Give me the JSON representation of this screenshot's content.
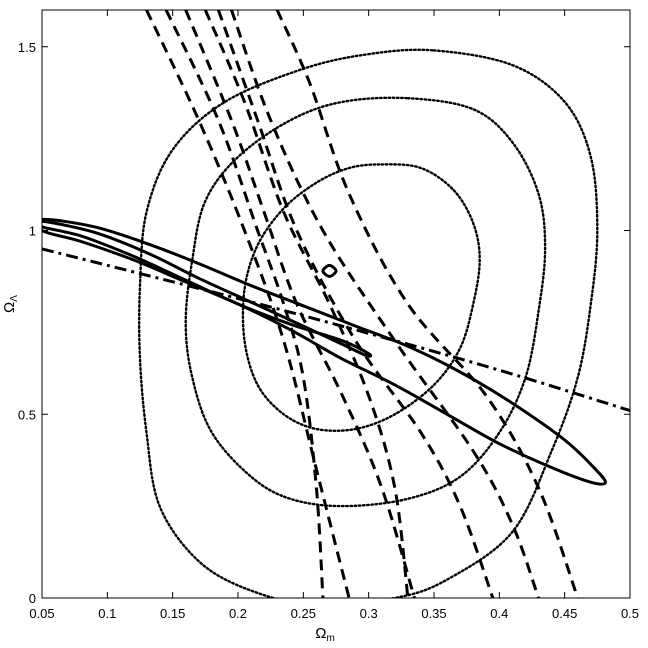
{
  "chart_data": {
    "type": "line",
    "xlabel": "Ω_m",
    "xlabel_main": "Ω",
    "xlabel_sub": "m",
    "ylabel": "Ω_Λ",
    "ylabel_main": "Ω",
    "ylabel_sub": "Λ",
    "xlim": [
      0.05,
      0.5
    ],
    "ylim": [
      0,
      1.6
    ],
    "xticks": [
      0.05,
      0.1,
      0.15,
      0.2,
      0.25,
      0.3,
      0.35,
      0.4,
      0.45,
      0.5
    ],
    "xtick_labels": [
      "0.05",
      "0.1",
      "0.15",
      "0.2",
      "0.25",
      "0.3",
      "0.35",
      "0.4",
      "0.45",
      "0.5"
    ],
    "yticks": [
      0,
      0.5,
      1,
      1.5
    ],
    "ytick_labels": [
      "0",
      "0.5",
      "1",
      "1.5"
    ],
    "grid": false,
    "series": [
      {
        "style": "dotted-contour",
        "closed": true,
        "points": [
          [
            0.35,
            1.49
          ],
          [
            0.41,
            1.45
          ],
          [
            0.45,
            1.35
          ],
          [
            0.47,
            1.2
          ],
          [
            0.475,
            1.0
          ],
          [
            0.47,
            0.8
          ],
          [
            0.46,
            0.6
          ],
          [
            0.44,
            0.4
          ],
          [
            0.41,
            0.18
          ],
          [
            0.36,
            0.05
          ],
          [
            0.32,
            0.0
          ],
          [
            0.26,
            -0.02
          ],
          [
            0.21,
            0.02
          ],
          [
            0.17,
            0.1
          ],
          [
            0.14,
            0.25
          ],
          [
            0.13,
            0.45
          ],
          [
            0.125,
            0.65
          ],
          [
            0.125,
            0.85
          ],
          [
            0.13,
            1.05
          ],
          [
            0.15,
            1.22
          ],
          [
            0.19,
            1.35
          ],
          [
            0.25,
            1.44
          ],
          [
            0.3,
            1.48
          ]
        ]
      },
      {
        "style": "dotted-contour",
        "closed": true,
        "points": [
          [
            0.33,
            1.36
          ],
          [
            0.38,
            1.33
          ],
          [
            0.41,
            1.24
          ],
          [
            0.43,
            1.1
          ],
          [
            0.435,
            0.95
          ],
          [
            0.43,
            0.78
          ],
          [
            0.42,
            0.6
          ],
          [
            0.4,
            0.45
          ],
          [
            0.37,
            0.33
          ],
          [
            0.33,
            0.27
          ],
          [
            0.28,
            0.25
          ],
          [
            0.24,
            0.27
          ],
          [
            0.21,
            0.33
          ],
          [
            0.18,
            0.45
          ],
          [
            0.165,
            0.6
          ],
          [
            0.16,
            0.75
          ],
          [
            0.165,
            0.92
          ],
          [
            0.175,
            1.08
          ],
          [
            0.2,
            1.2
          ],
          [
            0.24,
            1.3
          ],
          [
            0.28,
            1.35
          ]
        ]
      },
      {
        "style": "dotted-contour",
        "closed": true,
        "points": [
          [
            0.31,
            1.18
          ],
          [
            0.34,
            1.17
          ],
          [
            0.365,
            1.11
          ],
          [
            0.38,
            1.02
          ],
          [
            0.385,
            0.92
          ],
          [
            0.38,
            0.8
          ],
          [
            0.37,
            0.68
          ],
          [
            0.35,
            0.58
          ],
          [
            0.32,
            0.5
          ],
          [
            0.29,
            0.46
          ],
          [
            0.26,
            0.46
          ],
          [
            0.235,
            0.5
          ],
          [
            0.215,
            0.58
          ],
          [
            0.205,
            0.7
          ],
          [
            0.205,
            0.84
          ],
          [
            0.215,
            0.96
          ],
          [
            0.235,
            1.06
          ],
          [
            0.26,
            1.13
          ],
          [
            0.285,
            1.17
          ]
        ]
      },
      {
        "style": "solid-contour",
        "closed": true,
        "points": [
          [
            0.05,
            1.03
          ],
          [
            0.09,
            1.01
          ],
          [
            0.13,
            0.965
          ],
          [
            0.17,
            0.91
          ],
          [
            0.21,
            0.85
          ],
          [
            0.25,
            0.795
          ],
          [
            0.29,
            0.74
          ],
          [
            0.33,
            0.685
          ],
          [
            0.37,
            0.615
          ],
          [
            0.41,
            0.53
          ],
          [
            0.45,
            0.43
          ],
          [
            0.475,
            0.345
          ],
          [
            0.481,
            0.313
          ],
          [
            0.47,
            0.315
          ],
          [
            0.44,
            0.355
          ],
          [
            0.4,
            0.42
          ],
          [
            0.36,
            0.5
          ],
          [
            0.32,
            0.58
          ],
          [
            0.28,
            0.65
          ],
          [
            0.24,
            0.73
          ],
          [
            0.2,
            0.8
          ],
          [
            0.16,
            0.86
          ],
          [
            0.12,
            0.92
          ],
          [
            0.08,
            0.97
          ],
          [
            0.05,
            1.0
          ]
        ]
      },
      {
        "style": "solid-contour",
        "closed": true,
        "points": [
          [
            0.05,
            1.025
          ],
          [
            0.09,
            0.995
          ],
          [
            0.13,
            0.94
          ],
          [
            0.17,
            0.87
          ],
          [
            0.21,
            0.805
          ],
          [
            0.25,
            0.74
          ],
          [
            0.28,
            0.69
          ],
          [
            0.298,
            0.66
          ],
          [
            0.3,
            0.665
          ],
          [
            0.28,
            0.7
          ],
          [
            0.24,
            0.745
          ],
          [
            0.2,
            0.8
          ],
          [
            0.16,
            0.865
          ],
          [
            0.12,
            0.93
          ],
          [
            0.08,
            0.985
          ],
          [
            0.05,
            1.01
          ]
        ]
      },
      {
        "style": "solid-contour",
        "closed": true,
        "points": [
          [
            0.27,
            0.905
          ],
          [
            0.275,
            0.89
          ],
          [
            0.27,
            0.875
          ],
          [
            0.265,
            0.89
          ]
        ]
      },
      {
        "style": "dashdot-line",
        "closed": false,
        "points": [
          [
            0.05,
            0.95
          ],
          [
            0.2,
            0.815
          ],
          [
            0.3,
            0.72
          ],
          [
            0.4,
            0.62
          ],
          [
            0.5,
            0.51
          ]
        ]
      },
      {
        "style": "dashed-line",
        "closed": false,
        "points": [
          [
            0.13,
            1.6
          ],
          [
            0.17,
            1.3
          ],
          [
            0.205,
            1.0
          ],
          [
            0.235,
            0.7
          ],
          [
            0.26,
            0.35
          ],
          [
            0.285,
            0.0
          ]
        ]
      },
      {
        "style": "dashed-line",
        "closed": false,
        "points": [
          [
            0.145,
            1.6
          ],
          [
            0.185,
            1.3
          ],
          [
            0.215,
            1.0
          ],
          [
            0.235,
            0.8
          ],
          [
            0.25,
            0.6
          ],
          [
            0.26,
            0.3
          ],
          [
            0.265,
            0.0
          ]
        ]
      },
      {
        "style": "dashed-line",
        "closed": false,
        "points": [
          [
            0.16,
            1.6
          ],
          [
            0.195,
            1.3
          ],
          [
            0.22,
            1.05
          ],
          [
            0.245,
            0.8
          ],
          [
            0.28,
            0.55
          ],
          [
            0.31,
            0.3
          ],
          [
            0.335,
            0.0
          ]
        ]
      },
      {
        "style": "dashed-line",
        "closed": false,
        "points": [
          [
            0.175,
            1.6
          ],
          [
            0.205,
            1.35
          ],
          [
            0.235,
            1.05
          ],
          [
            0.27,
            0.8
          ],
          [
            0.3,
            0.55
          ],
          [
            0.32,
            0.3
          ],
          [
            0.33,
            0.0
          ]
        ]
      },
      {
        "style": "dashed-line",
        "closed": false,
        "points": [
          [
            0.185,
            1.6
          ],
          [
            0.215,
            1.3
          ],
          [
            0.245,
            1.0
          ],
          [
            0.29,
            0.7
          ],
          [
            0.34,
            0.45
          ],
          [
            0.37,
            0.25
          ],
          [
            0.395,
            0.0
          ]
        ]
      },
      {
        "style": "dashed-line",
        "closed": false,
        "points": [
          [
            0.195,
            1.6
          ],
          [
            0.225,
            1.3
          ],
          [
            0.265,
            1.0
          ],
          [
            0.32,
            0.7
          ],
          [
            0.38,
            0.4
          ],
          [
            0.41,
            0.2
          ],
          [
            0.43,
            0.0
          ]
        ]
      },
      {
        "style": "dashed-line",
        "closed": false,
        "points": [
          [
            0.23,
            1.6
          ],
          [
            0.255,
            1.4
          ],
          [
            0.285,
            1.1
          ],
          [
            0.33,
            0.8
          ],
          [
            0.39,
            0.55
          ],
          [
            0.43,
            0.3
          ],
          [
            0.46,
            0.0
          ]
        ]
      }
    ]
  }
}
